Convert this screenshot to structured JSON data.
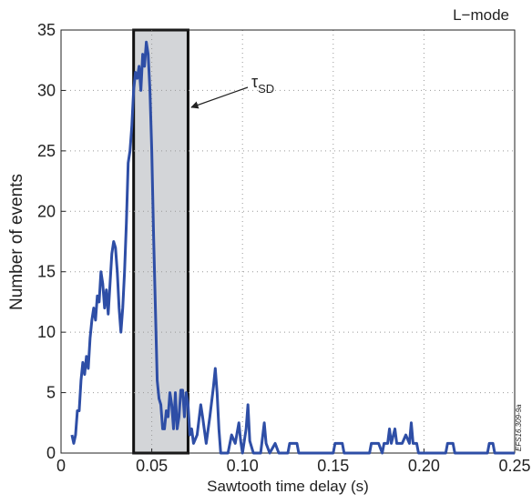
{
  "chart_data": {
    "type": "line",
    "xlabel": "Sawtooth time delay (s)",
    "ylabel": "Number of events",
    "corner_label": "L−mode",
    "side_label": "EFS16.309-9a",
    "annotation": {
      "text": "τ",
      "subscript": "SD"
    },
    "shaded_range": [
      0.04,
      0.07
    ],
    "grid": true,
    "xlim": [
      0,
      0.25
    ],
    "ylim": [
      0,
      35
    ],
    "xticks": [
      0,
      0.05,
      {
        "value": 0.1,
        "label": "0.10"
      },
      0.15,
      {
        "value": 0.2,
        "label": "0.20"
      },
      0.25
    ],
    "yticks": [
      0,
      5,
      10,
      15,
      20,
      25,
      30,
      35
    ],
    "x": [
      0.006,
      0.007,
      0.008,
      0.009,
      0.01,
      0.011,
      0.012,
      0.013,
      0.014,
      0.015,
      0.016,
      0.017,
      0.018,
      0.019,
      0.02,
      0.021,
      0.022,
      0.023,
      0.024,
      0.025,
      0.026,
      0.027,
      0.028,
      0.029,
      0.03,
      0.031,
      0.032,
      0.033,
      0.034,
      0.035,
      0.036,
      0.037,
      0.038,
      0.039,
      0.04,
      0.041,
      0.042,
      0.043,
      0.044,
      0.045,
      0.046,
      0.047,
      0.048,
      0.049,
      0.05,
      0.051,
      0.052,
      0.053,
      0.054,
      0.055,
      0.056,
      0.057,
      0.058,
      0.059,
      0.06,
      0.061,
      0.062,
      0.063,
      0.064,
      0.065,
      0.066,
      0.067,
      0.068,
      0.069,
      0.07,
      0.071,
      0.072,
      0.073,
      0.075,
      0.077,
      0.078,
      0.08,
      0.082,
      0.084,
      0.085,
      0.086,
      0.087,
      0.088,
      0.092,
      0.094,
      0.096,
      0.098,
      0.099,
      0.1,
      0.102,
      0.103,
      0.104,
      0.106,
      0.11,
      0.112,
      0.113,
      0.115,
      0.118,
      0.12,
      0.125,
      0.126,
      0.13,
      0.131,
      0.15,
      0.151,
      0.155,
      0.156,
      0.17,
      0.171,
      0.175,
      0.177,
      0.178,
      0.18,
      0.181,
      0.182,
      0.184,
      0.185,
      0.188,
      0.19,
      0.192,
      0.193,
      0.194,
      0.196,
      0.197,
      0.212,
      0.213,
      0.216,
      0.217,
      0.235,
      0.236,
      0.238,
      0.239,
      0.25
    ],
    "series": [
      {
        "name": "events",
        "color": "#2e4ea6",
        "values": [
          1.5,
          0.8,
          1.5,
          3.5,
          3.5,
          6,
          7.5,
          6.5,
          8,
          7,
          9.5,
          11,
          12,
          11,
          13,
          12.5,
          15,
          14,
          12,
          13.5,
          11.5,
          14,
          16.5,
          17.5,
          17,
          15,
          12,
          10,
          12,
          15,
          19,
          24,
          25,
          27,
          30,
          31.5,
          31,
          32,
          30,
          33,
          32,
          34,
          33,
          30,
          25,
          18,
          12,
          6,
          4.5,
          4,
          2,
          2,
          3.5,
          3,
          5,
          4,
          2,
          5,
          2,
          3,
          5.2,
          5.2,
          3,
          5,
          4,
          1.5,
          2,
          0.8,
          1.5,
          4,
          3,
          0.8,
          3,
          5.5,
          7,
          5,
          2,
          0,
          0,
          1.5,
          0.8,
          2.5,
          1,
          0,
          2,
          4,
          1,
          0,
          0,
          2.5,
          0.8,
          0,
          0.8,
          0,
          0,
          0.8,
          0.8,
          0,
          0,
          0.8,
          0.8,
          0,
          0,
          0.8,
          0.8,
          0,
          0.8,
          0.8,
          2,
          0.8,
          2,
          0.8,
          0.8,
          1.5,
          0.8,
          2.5,
          0.8,
          0.8,
          0,
          0,
          0.8,
          0.8,
          0,
          0,
          0.8,
          0.8,
          0,
          0
        ]
      }
    ]
  }
}
